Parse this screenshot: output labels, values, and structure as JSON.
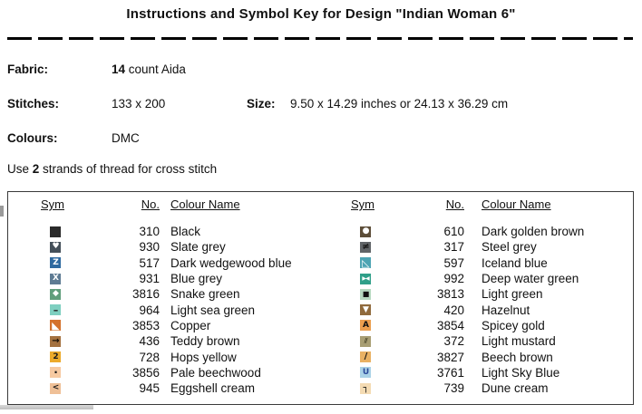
{
  "title": "Instructions and Symbol Key for Design \"Indian Woman 6\"",
  "info": {
    "fabric": {
      "label": "Fabric:",
      "bold": "14",
      "rest": " count Aida"
    },
    "stitches": {
      "label": "Stitches:",
      "value": "133 x 200"
    },
    "size": {
      "label": "Size:",
      "value": "9.50 x 14.29 inches or 24.13 x 36.29 cm"
    },
    "colours": {
      "label": "Colours:",
      "value": "DMC"
    },
    "strands": {
      "prefix": "Use ",
      "bold": "2",
      "rest": " strands of thread for cross stitch"
    }
  },
  "key_table": {
    "headers": {
      "sym": "Sym",
      "no": "No.",
      "name": "Colour Name"
    },
    "left_rows": [
      {
        "no": "310",
        "name": "Black",
        "sym": {
          "icon": "black-square",
          "bg": "#2a2a2a",
          "fg": "#2a2a2a",
          "glyph": "",
          "scale": 9
        }
      },
      {
        "no": "930",
        "name": "Slate grey",
        "sym": {
          "icon": "white-heart",
          "bg": "#44505a",
          "fg": "#ffffff",
          "glyph": "♥",
          "scale": 9
        }
      },
      {
        "no": "517",
        "name": "Dark wedgewood blue",
        "sym": {
          "icon": "letter-z",
          "bg": "#2f6aa0",
          "fg": "#ffffff",
          "glyph": "Z",
          "scale": 9,
          "bold": true
        }
      },
      {
        "no": "931",
        "name": "Blue grey",
        "sym": {
          "icon": "letter-x",
          "bg": "#5e7b93",
          "fg": "#ffffff",
          "glyph": "X",
          "scale": 9,
          "bold": true
        }
      },
      {
        "no": "3816",
        "name": "Snake green",
        "sym": {
          "icon": "white-diamond",
          "bg": "#619e7c",
          "fg": "#ffffff",
          "glyph": "◆",
          "scale": 9
        }
      },
      {
        "no": "964",
        "name": "Light sea green",
        "sym": {
          "icon": "dash",
          "bg": "#7ecfc0",
          "fg": "#222222",
          "glyph": "–",
          "scale": 11,
          "bold": true
        }
      },
      {
        "no": "3853",
        "name": "Copper",
        "sym": {
          "icon": "white-lower-left-triangle",
          "bg": "#d4722c",
          "fg": "#ffffff",
          "glyph": "◣",
          "scale": 11
        }
      },
      {
        "no": "436",
        "name": "Teddy brown",
        "sym": {
          "icon": "right-arrow",
          "bg": "#a4713f",
          "fg": "#1a1208",
          "glyph": "→",
          "scale": 10,
          "bold": true
        }
      },
      {
        "no": "728",
        "name": "Hops yellow",
        "sym": {
          "icon": "digit-2",
          "bg": "#ecaa2a",
          "fg": "#1a1a1a",
          "glyph": "2",
          "scale": 9,
          "bold": true
        }
      },
      {
        "no": "3856",
        "name": "Pale beechwood",
        "sym": {
          "icon": "dot",
          "bg": "#f6c9a1",
          "fg": "#1a1a1a",
          "glyph": "·",
          "scale": 12,
          "bold": true
        }
      },
      {
        "no": "945",
        "name": "Eggshell cream",
        "sym": {
          "icon": "less-than",
          "bg": "#efc097",
          "fg": "#1a1a1a",
          "glyph": "<",
          "scale": 9,
          "bold": true
        }
      }
    ],
    "right_rows": [
      {
        "no": "610",
        "name": "Dark golden brown",
        "sym": {
          "icon": "white-circle",
          "bg": "#5d4e39",
          "fg": "#ffffff",
          "glyph": "●",
          "scale": 9
        }
      },
      {
        "no": "317",
        "name": "Steel grey",
        "sym": {
          "icon": "not-equal",
          "bg": "#606467",
          "fg": "#141414",
          "glyph": "≠",
          "scale": 10,
          "bold": true
        }
      },
      {
        "no": "597",
        "name": "Iceland blue",
        "sym": {
          "icon": "lower-left-triangle-outline",
          "bg": "#4da4b3",
          "fg": "#ffffff",
          "glyph": "◺",
          "scale": 11
        }
      },
      {
        "no": "992",
        "name": "Deep water green",
        "sym": {
          "icon": "bowtie",
          "bg": "#2f9f89",
          "fg": "#ffffff",
          "glyph": "▶◀",
          "scale": 6
        }
      },
      {
        "no": "3813",
        "name": "Light green",
        "sym": {
          "icon": "black-square-small",
          "bg": "#b6d9c0",
          "fg": "#111111",
          "glyph": "■",
          "scale": 8
        }
      },
      {
        "no": "420",
        "name": "Hazelnut",
        "sym": {
          "icon": "white-down-triangle",
          "bg": "#906a3c",
          "fg": "#ffffff",
          "glyph": "▼",
          "scale": 9
        }
      },
      {
        "no": "3854",
        "name": "Spicey gold",
        "sym": {
          "icon": "letter-a",
          "bg": "#eb9e4e",
          "fg": "#111111",
          "glyph": "A",
          "scale": 9,
          "bold": true
        }
      },
      {
        "no": "372",
        "name": "Light mustard",
        "sym": {
          "icon": "double-slash",
          "bg": "#a89e73",
          "fg": "#3c3920",
          "glyph": "//",
          "scale": 7,
          "bold": true
        }
      },
      {
        "no": "3827",
        "name": "Beech brown",
        "sym": {
          "icon": "slash",
          "bg": "#e9b163",
          "fg": "#111111",
          "glyph": "/",
          "scale": 10,
          "bold": true
        }
      },
      {
        "no": "3761",
        "name": "Light Sky Blue",
        "sym": {
          "icon": "letter-u",
          "bg": "#aad2e7",
          "fg": "#2b4a9b",
          "glyph": "U",
          "scale": 9,
          "bold": true
        }
      },
      {
        "no": "739",
        "name": "Dune cream",
        "sym": {
          "icon": "top-right-corner",
          "bg": "#f4dbb3",
          "fg": "#111111",
          "glyph": "┐",
          "scale": 10,
          "bold": true
        }
      }
    ]
  }
}
